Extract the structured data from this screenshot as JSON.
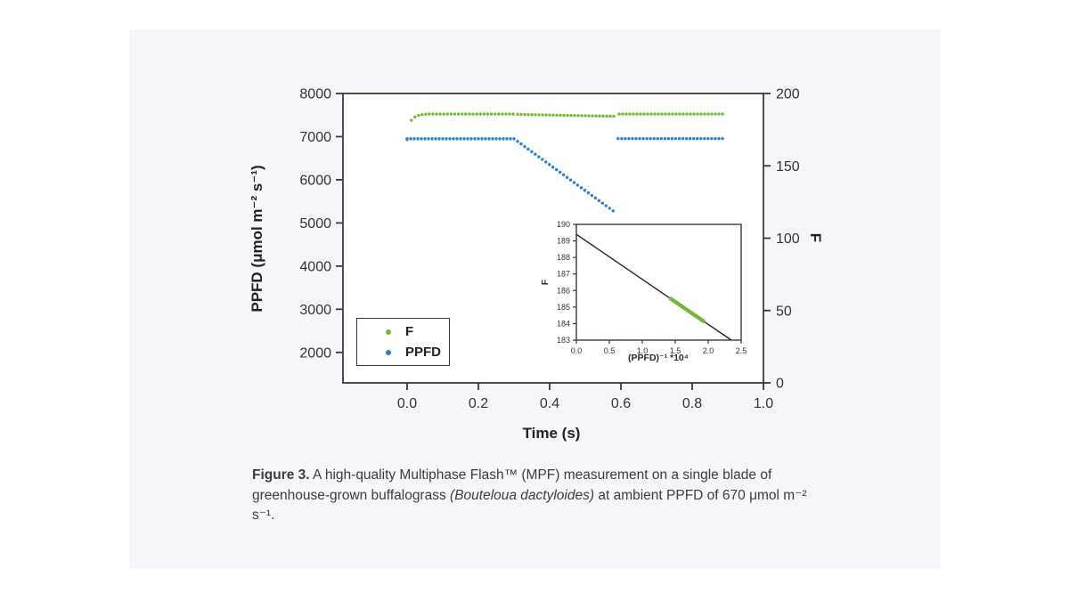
{
  "page": {
    "background": "#ffffff",
    "card_background": "#f4f6f9",
    "axis_color": "#3a3a3a"
  },
  "figure": {
    "caption": {
      "label": "Figure 3.",
      "text_1": " A high-quality Multiphase Flash™ (MPF) measurement on a single blade of greenhouse-grown buffalograss ",
      "species_italic": "(Bouteloua dactyloides)",
      "text_2": " at ambient PPFD of 670 μmol m⁻² s⁻¹."
    }
  },
  "chart_data": [
    {
      "id": "main",
      "type": "scatter",
      "title": "",
      "xlabel": "Time (s)",
      "ylabel_left": "PPFD (μmol m⁻² s⁻¹)",
      "ylabel_right": "F",
      "xlim": [
        -0.18,
        1.0
      ],
      "xticks": [
        0.0,
        0.2,
        0.4,
        0.6,
        0.8,
        1.0
      ],
      "ylim_left": [
        1294,
        8000
      ],
      "yticks_left": [
        2000,
        3000,
        4000,
        5000,
        6000,
        7000,
        8000
      ],
      "ylim_right": [
        0,
        200
      ],
      "yticks_right": [
        0,
        50,
        100,
        150,
        200
      ],
      "grid": false,
      "legend": {
        "position": "lower-left",
        "items": [
          {
            "label": "F",
            "color": "#76b83a"
          },
          {
            "label": "PPFD",
            "color": "#2481d3"
          }
        ]
      },
      "series": [
        {
          "name": "F",
          "axis": "right",
          "color": "#76b83a",
          "marker_r": 1.7,
          "segments": [
            {
              "type": "points",
              "points": [
                [
                  0.0,
                  168.0
                ]
              ]
            },
            {
              "type": "points",
              "points": [
                [
                  0.012,
                  181.5
                ],
                [
                  0.022,
                  183.8
                ],
                [
                  0.032,
                  184.9
                ],
                [
                  0.042,
                  185.4
                ],
                [
                  0.052,
                  185.7
                ]
              ]
            },
            {
              "type": "ramp",
              "t0": 0.062,
              "t1": 0.298,
              "v0": 185.8,
              "v1": 185.8,
              "n": 24
            },
            {
              "type": "ramp",
              "t0": 0.31,
              "t1": 0.58,
              "v0": 185.6,
              "v1": 184.2,
              "n": 28
            },
            {
              "type": "ramp",
              "t0": 0.595,
              "t1": 0.885,
              "v0": 185.8,
              "v1": 185.8,
              "n": 30
            }
          ]
        },
        {
          "name": "PPFD",
          "axis": "left",
          "color": "#2481d3",
          "marker_r": 1.7,
          "segments": [
            {
              "type": "ramp",
              "t0": 0.0,
              "t1": 0.3,
              "v0": 6950,
              "v1": 6950,
              "n": 31
            },
            {
              "type": "ramp",
              "t0": 0.31,
              "t1": 0.578,
              "v0": 6890,
              "v1": 5280,
              "n": 28
            },
            {
              "type": "ramp",
              "t0": 0.592,
              "t1": 0.885,
              "v0": 6955,
              "v1": 6955,
              "n": 30
            }
          ]
        }
      ]
    },
    {
      "id": "inset",
      "type": "scatter+line",
      "xlabel": "(PPFD)⁻¹ *10⁴",
      "ylabel": "F",
      "xlim": [
        0.0,
        2.5
      ],
      "xticks": [
        0.0,
        0.5,
        1.0,
        1.5,
        2.0,
        2.5
      ],
      "ylim": [
        183,
        190
      ],
      "yticks": [
        183,
        184,
        185,
        186,
        187,
        188,
        189,
        190
      ],
      "grid": false,
      "line": {
        "x0": 0.0,
        "y0": 189.4,
        "x1": 2.35,
        "y1": 183.0,
        "color": "#222222"
      },
      "points": {
        "x0": 1.43,
        "x1": 1.93,
        "on_line": true,
        "n": 36,
        "color": "#76b83a",
        "marker_r": 2.2
      }
    }
  ]
}
